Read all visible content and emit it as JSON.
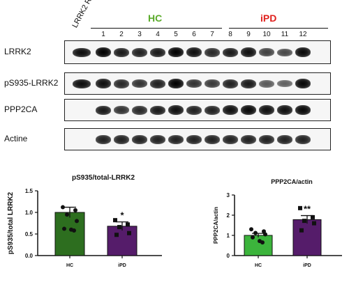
{
  "blot": {
    "rec_label": "LRRK2 Rec",
    "groups": [
      {
        "label": "HC",
        "color": "#5aaa2a"
      },
      {
        "label": "iPD",
        "color": "#e0201c"
      }
    ],
    "lanes": [
      "1",
      "2",
      "3",
      "4",
      "5",
      "6",
      "7",
      "8",
      "9",
      "10",
      "11",
      "12"
    ],
    "rows": [
      {
        "label": "LRRK2",
        "intensity": [
          1,
          0.85,
          0.8,
          0.85,
          1,
          0.9,
          0.75,
          0.85,
          0.9,
          0.6,
          0.55,
          0.95
        ],
        "rec_band": true
      },
      {
        "label": "pS935-LRRK2",
        "intensity": [
          0.9,
          0.75,
          0.7,
          0.8,
          1,
          0.7,
          0.65,
          0.8,
          0.85,
          0.45,
          0.4,
          0.95
        ],
        "rec_band": true
      },
      {
        "label": "PPP2CA",
        "intensity": [
          0.85,
          0.7,
          0.75,
          0.85,
          0.9,
          0.8,
          0.8,
          0.9,
          0.95,
          0.9,
          0.9,
          0.95
        ],
        "rec_band": false
      },
      {
        "label": "Actine",
        "intensity": [
          0.8,
          0.8,
          0.8,
          0.8,
          0.8,
          0.8,
          0.8,
          0.8,
          0.8,
          0.8,
          0.8,
          0.8
        ],
        "rec_band": false
      }
    ]
  },
  "chart_data": [
    {
      "type": "bar",
      "title": "pS935/total-LRRK2",
      "ylabel": "pS935/total LRRK2",
      "categories": [
        "HC",
        "iPD"
      ],
      "values": [
        1.0,
        0.68
      ],
      "errors": [
        0.12,
        0.1
      ],
      "colors": [
        "#2d6e1f",
        "#551c6a"
      ],
      "ylim": [
        0,
        1.5
      ],
      "yticks": [
        "0.0",
        "0.5",
        "1.0",
        "1.5"
      ],
      "points": [
        [
          1.12,
          1.05,
          0.95,
          0.8,
          0.62,
          0.6,
          0.58
        ],
        [
          0.82,
          0.72,
          0.66,
          0.52,
          0.48
        ]
      ],
      "markers": [
        "circle",
        "square"
      ],
      "significance": [
        "",
        "*"
      ]
    },
    {
      "type": "bar",
      "title": "PPP2CA/actin",
      "ylabel": "PPP2CA/actin",
      "categories": [
        "HC",
        "iPD"
      ],
      "values": [
        1.0,
        1.78
      ],
      "errors": [
        0.1,
        0.2
      ],
      "colors": [
        "#3cb43c",
        "#551c6a"
      ],
      "ylim": [
        0,
        3
      ],
      "yticks": [
        "0",
        "1",
        "2",
        "3"
      ],
      "points": [
        [
          1.3,
          1.2,
          1.12,
          1.05,
          0.9,
          0.72,
          0.65
        ],
        [
          2.35,
          1.9,
          1.72,
          1.6,
          1.25
        ]
      ],
      "markers": [
        "circle",
        "square"
      ],
      "significance": [
        "",
        "**"
      ]
    }
  ]
}
